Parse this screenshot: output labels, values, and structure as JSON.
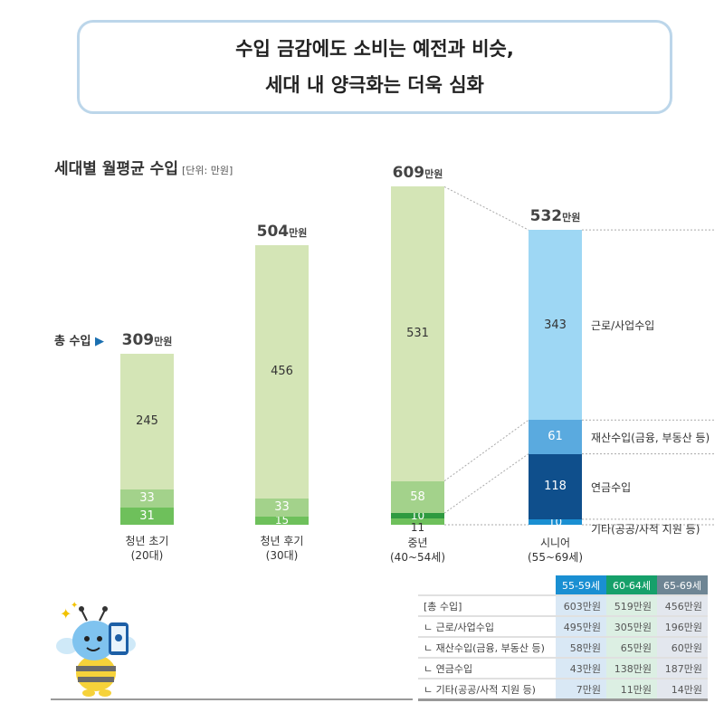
{
  "headline": {
    "line1": "수입 금감에도 소비는 예전과 비슷,",
    "line2": "세대 내 양극화는 더욱 심화"
  },
  "chart_data": {
    "type": "bar",
    "stacked": true,
    "title": "세대별 월평균 수입",
    "unit_note": "[단위: 만원]",
    "total_label": "총 수입",
    "total_suffix": "만원",
    "ylim": [
      0,
      609
    ],
    "categories": [
      {
        "name": "청년 초기",
        "sub": "(20대)"
      },
      {
        "name": "청년 후기",
        "sub": "(30대)"
      },
      {
        "name": "중년",
        "sub": "(40~54세)"
      },
      {
        "name": "시니어",
        "sub": "(55~69세)"
      }
    ],
    "totals": [
      309,
      504,
      609,
      532
    ],
    "series": [
      {
        "name": "근로/사업수입",
        "values": [
          245,
          456,
          531,
          343
        ],
        "colors": [
          "#d4e5b6",
          "#d4e5b6",
          "#d4e5b6",
          "#9ed7f4"
        ]
      },
      {
        "name": "재산수입(금융, 부동산 등)",
        "values": [
          33,
          33,
          58,
          61
        ],
        "colors": [
          "#a3d28b",
          "#a3d28b",
          "#a3d28b",
          "#5aaadf"
        ]
      },
      {
        "name": "연금수입",
        "values": [
          null,
          null,
          10,
          118
        ],
        "colors": [
          "#2f9a40",
          "#2f9a40",
          "#2f9a40",
          "#0f4f8c"
        ]
      },
      {
        "name": "기타(공공/사적 지원 등)",
        "values": [
          31,
          15,
          11,
          10
        ],
        "colors": [
          "#6ec05b",
          "#6ec05b",
          "#6ec05b",
          "#1a8fd2"
        ]
      }
    ]
  },
  "table": {
    "headers": [
      "55-59세",
      "60-64세",
      "65-69세"
    ],
    "header_colors": [
      "#1a8fd2",
      "#16a06a",
      "#6e8594"
    ],
    "rows": [
      {
        "label": "[총 수입]",
        "values": [
          "603만원",
          "519만원",
          "456만원"
        ]
      },
      {
        "label": "ㄴ 근로/사업수입",
        "values": [
          "495만원",
          "305만원",
          "196만원"
        ]
      },
      {
        "label": "ㄴ 재산수입(금융, 부동산 등)",
        "values": [
          "58만원",
          "65만원",
          "60만원"
        ]
      },
      {
        "label": "ㄴ 연금수입",
        "values": [
          "43만원",
          "138만원",
          "187만원"
        ]
      },
      {
        "label": "ㄴ 기타(공공/사적 지원 등)",
        "values": [
          "7만원",
          "11만원",
          "14만원"
        ]
      }
    ]
  },
  "mascot": "bee-with-phone"
}
